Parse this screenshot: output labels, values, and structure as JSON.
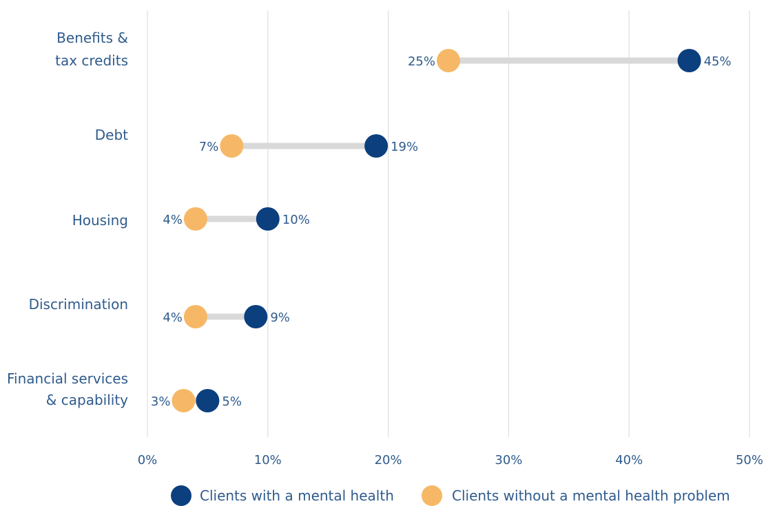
{
  "chart_data": {
    "type": "dumbbell",
    "x_ticks": [
      "0%",
      "10%",
      "20%",
      "30%",
      "40%",
      "50%"
    ],
    "xlim": [
      0,
      50
    ],
    "grid": true,
    "legend_position": "bottom",
    "series": [
      {
        "name": "Clients with a mental health",
        "color": "#0b3f7e"
      },
      {
        "name": "Clients without a mental health problem",
        "color": "#f6b867"
      }
    ],
    "categories": [
      {
        "label_lines": [
          "Benefits &",
          "tax credits"
        ],
        "with": 45,
        "without": 25,
        "with_label": "45%",
        "without_label": "25%"
      },
      {
        "label_lines": [
          "Debt"
        ],
        "with": 19,
        "without": 7,
        "with_label": "19%",
        "without_label": "7%"
      },
      {
        "label_lines": [
          "Housing"
        ],
        "with": 10,
        "without": 4,
        "with_label": "10%",
        "without_label": "4%"
      },
      {
        "label_lines": [
          "Discrimination"
        ],
        "with": 9,
        "without": 4,
        "with_label": "9%",
        "without_label": "4%"
      },
      {
        "label_lines": [
          "Financial services",
          "& capability"
        ],
        "with": 5,
        "without": 3,
        "with_label": "5%",
        "without_label": "3%"
      }
    ]
  },
  "colors": {
    "label_text": "#2f5b8c",
    "gridline": "#dedede",
    "connector": "#d9d9d9"
  }
}
